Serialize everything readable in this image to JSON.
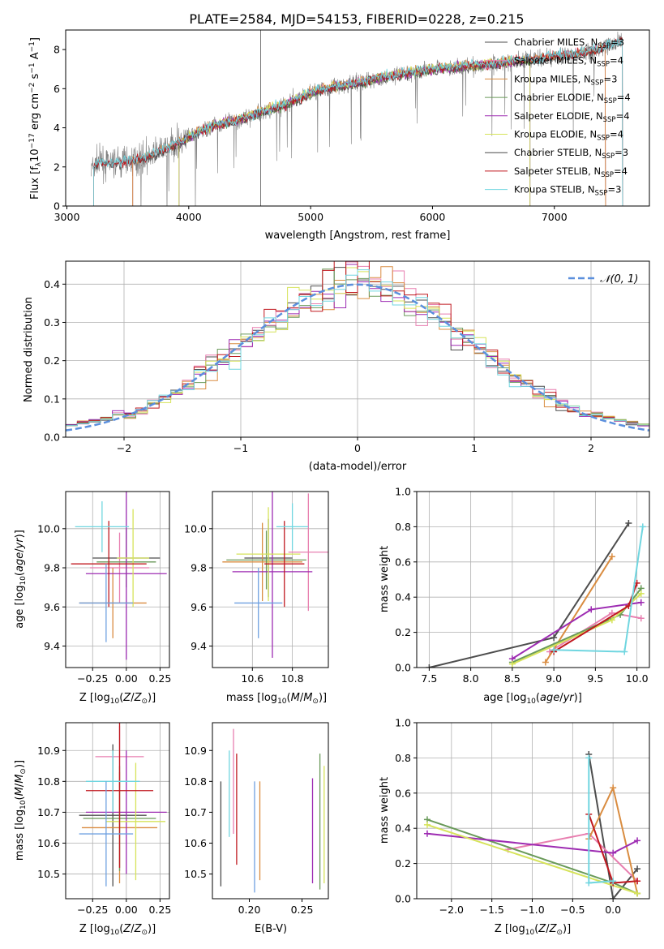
{
  "figure": {
    "title": "PLATE=2584, MJD=54153, FIBERID=0228, z=0.215"
  },
  "chart_data": [
    {
      "id": "spectrum",
      "type": "line",
      "xlabel": "wavelength [Angstrom, rest frame]",
      "ylabel": "Flux [f_λ 10^-17 erg cm^-2 s^-1 A^-1]",
      "xlim": [
        2990,
        7780
      ],
      "ylim": [
        0,
        9
      ],
      "xticks": [
        3000,
        4000,
        5000,
        6000,
        7000
      ],
      "yticks": [
        0,
        2,
        4,
        6,
        8
      ],
      "grid": false,
      "legend_position": "top-right",
      "vline_x": 4590,
      "data_trend": {
        "x": [
          3200,
          3260,
          3400,
          3600,
          3700,
          3800,
          3950,
          4050,
          4200,
          4400,
          4600,
          4800,
          5000,
          5200,
          5400,
          5600,
          5800,
          6000,
          6200,
          6400,
          6600,
          6800,
          7000,
          7200,
          7400,
          7560
        ],
        "y": [
          1.9,
          2.2,
          2.2,
          2.4,
          2.6,
          2.9,
          3.3,
          3.7,
          4.1,
          4.4,
          4.8,
          5.2,
          5.8,
          6.1,
          6.3,
          6.6,
          6.8,
          7.0,
          7.1,
          7.2,
          7.35,
          7.5,
          7.65,
          7.8,
          8.1,
          8.5
        ]
      },
      "series": [
        {
          "name": "Chabrier MILES, N_SSP=3",
          "color": "#4d4d4d",
          "x_start": 3540,
          "x_end": 7420
        },
        {
          "name": "Salpeter MILES, N_SSP=4",
          "color": "#e87fb0",
          "x_start": 3540,
          "x_end": 7420
        },
        {
          "name": "Kroupa MILES, N_SSP=3",
          "color": "#d98c40",
          "x_start": 3540,
          "x_end": 7420
        },
        {
          "name": "Chabrier ELODIE, N_SSP=4",
          "color": "#6a9a5a",
          "x_start": 3920,
          "x_end": 6800
        },
        {
          "name": "Salpeter ELODIE, N_SSP=4",
          "color": "#9d2bb2",
          "x_start": 3920,
          "x_end": 6800
        },
        {
          "name": "Kroupa ELODIE, N_SSP=4",
          "color": "#d6e35a",
          "x_start": 3920,
          "x_end": 6800
        },
        {
          "name": "Chabrier STELIB, N_SSP=3",
          "color": "#4a4a4a",
          "x_start": 3220,
          "x_end": 7560
        },
        {
          "name": "Salpeter STELIB, N_SSP=4",
          "color": "#c0181f",
          "x_start": 3220,
          "x_end": 7560
        },
        {
          "name": "Kroupa STELIB, N_SSP=3",
          "color": "#70d6e0",
          "x_start": 3220,
          "x_end": 7560
        }
      ]
    },
    {
      "id": "residuals",
      "type": "line",
      "xlabel": "(data-model)/error",
      "ylabel": "Normed distribution",
      "xlim": [
        -2.5,
        2.5
      ],
      "ylim": [
        0,
        0.46
      ],
      "xticks": [
        -2,
        -1,
        0,
        1,
        2
      ],
      "yticks": [
        0.0,
        0.1,
        0.2,
        0.3,
        0.4
      ],
      "grid": true,
      "legend_position": "top-right",
      "reference": {
        "name": "𝒩(0, 1)",
        "color": "#5b8fdd",
        "mean": 0,
        "sigma": 1
      },
      "bins": {
        "start": -2.5,
        "width": 0.1,
        "count": 50
      },
      "histogram_colors": [
        "#4d4d4d",
        "#e87fb0",
        "#d98c40",
        "#6a9a5a",
        "#9d2bb2",
        "#d6e35a",
        "#c0181f",
        "#70d6e0"
      ]
    },
    {
      "id": "age_vs_Z",
      "type": "scatter",
      "xlabel": "Z [log10(Z/Z⊙)]",
      "ylabel": "age [log10(age/yr)]",
      "xlim": [
        -0.45,
        0.32
      ],
      "ylim": [
        9.29,
        10.19
      ],
      "xticks": [
        -0.25,
        0.0,
        0.25
      ],
      "yticks": [
        9.4,
        9.6,
        9.8,
        10.0
      ],
      "grid": true,
      "points": [
        {
          "x": 0.0,
          "y": 9.85,
          "xerr": 0.25,
          "yerr": 0.15,
          "color": "#4d4d4d"
        },
        {
          "x": -0.05,
          "y": 9.8,
          "xerr": 0.22,
          "yerr": 0.18,
          "color": "#e87fb0"
        },
        {
          "x": -0.1,
          "y": 9.62,
          "xerr": 0.25,
          "yerr": 0.18,
          "color": "#d98c40"
        },
        {
          "x": 0.0,
          "y": 9.83,
          "xerr": 0.22,
          "yerr": 0.12,
          "color": "#6a9a5a"
        },
        {
          "x": 0.0,
          "y": 9.77,
          "xerr": 0.3,
          "yerr": 0.44,
          "color": "#9d2bb2"
        },
        {
          "x": 0.05,
          "y": 9.85,
          "xerr": 0.12,
          "yerr": 0.25,
          "color": "#d6e35a"
        },
        {
          "x": -0.13,
          "y": 9.82,
          "xerr": 0.28,
          "yerr": 0.22,
          "color": "#c0181f"
        },
        {
          "x": -0.18,
          "y": 10.01,
          "xerr": 0.2,
          "yerr": 0.13,
          "color": "#70d6e0"
        },
        {
          "x": -0.15,
          "y": 9.62,
          "xerr": 0.2,
          "yerr": 0.2,
          "color": "#6fa0e0"
        }
      ]
    },
    {
      "id": "age_vs_mass",
      "type": "scatter",
      "xlabel": "mass [log10(M/M⊙)]",
      "ylabel": "",
      "xlim": [
        10.4,
        10.98
      ],
      "ylim": [
        9.29,
        10.19
      ],
      "xticks": [
        10.6,
        10.8
      ],
      "yticks": [
        9.4,
        9.6,
        9.8,
        10.0
      ],
      "grid": true,
      "points": [
        {
          "x": 10.68,
          "y": 9.85,
          "xerr": 0.12,
          "yerr": 0.2,
          "color": "#4d4d4d"
        },
        {
          "x": 10.88,
          "y": 9.88,
          "xerr": 0.1,
          "yerr": 0.3,
          "color": "#e87fb0"
        },
        {
          "x": 10.65,
          "y": 9.83,
          "xerr": 0.2,
          "yerr": 0.2,
          "color": "#d98c40"
        },
        {
          "x": 10.67,
          "y": 9.84,
          "xerr": 0.2,
          "yerr": 0.15,
          "color": "#6a9a5a"
        },
        {
          "x": 10.7,
          "y": 9.78,
          "xerr": 0.2,
          "yerr": 0.44,
          "color": "#9d2bb2"
        },
        {
          "x": 10.68,
          "y": 9.87,
          "xerr": 0.16,
          "yerr": 0.24,
          "color": "#d6e35a"
        },
        {
          "x": 10.76,
          "y": 9.82,
          "xerr": 0.1,
          "yerr": 0.22,
          "color": "#c0181f"
        },
        {
          "x": 10.8,
          "y": 10.01,
          "xerr": 0.08,
          "yerr": 0.12,
          "color": "#70d6e0"
        },
        {
          "x": 10.63,
          "y": 9.62,
          "xerr": 0.12,
          "yerr": 0.18,
          "color": "#6fa0e0"
        }
      ]
    },
    {
      "id": "weight_vs_age",
      "type": "line",
      "xlabel": "age [log10(age/yr)]",
      "ylabel": "mass weight",
      "xlim": [
        7.35,
        10.15
      ],
      "ylim": [
        0,
        1.0
      ],
      "xticks": [
        7.5,
        8.0,
        8.5,
        9.0,
        9.5,
        10.0
      ],
      "yticks": [
        0.0,
        0.2,
        0.4,
        0.6,
        0.8,
        1.0
      ],
      "grid": true,
      "series": [
        {
          "color": "#4d4d4d",
          "x": [
            7.5,
            9.0,
            9.9
          ],
          "y": [
            0.0,
            0.17,
            0.82
          ]
        },
        {
          "color": "#e87fb0",
          "x": [
            8.95,
            9.7,
            10.05
          ],
          "y": [
            0.09,
            0.31,
            0.28
          ]
        },
        {
          "color": "#d98c40",
          "x": [
            8.9,
            9.7
          ],
          "y": [
            0.03,
            0.63
          ]
        },
        {
          "color": "#6a9a5a",
          "x": [
            8.5,
            9.8,
            10.05
          ],
          "y": [
            0.03,
            0.3,
            0.45
          ]
        },
        {
          "color": "#9d2bb2",
          "x": [
            8.5,
            9.45,
            10.05
          ],
          "y": [
            0.05,
            0.33,
            0.37
          ]
        },
        {
          "color": "#d6e35a",
          "x": [
            8.5,
            9.7,
            10.05
          ],
          "y": [
            0.02,
            0.27,
            0.42
          ]
        },
        {
          "color": "#c0181f",
          "x": [
            9.0,
            9.9,
            10.0
          ],
          "y": [
            0.09,
            0.35,
            0.48
          ]
        },
        {
          "color": "#70d6e0",
          "x": [
            9.0,
            9.85,
            10.07
          ],
          "y": [
            0.1,
            0.09,
            0.8
          ]
        }
      ]
    },
    {
      "id": "mass_vs_Z",
      "type": "scatter",
      "xlabel": "Z [log10(Z/Z⊙)]",
      "ylabel": "mass [log10(M/M⊙)]",
      "xlim": [
        -0.45,
        0.32
      ],
      "ylim": [
        10.42,
        10.99
      ],
      "xticks": [
        -0.25,
        0.0,
        0.25
      ],
      "yticks": [
        10.5,
        10.6,
        10.7,
        10.8,
        10.9
      ],
      "grid": true,
      "points": [
        {
          "x": -0.1,
          "y": 10.69,
          "xerr": 0.25,
          "yerr": 0.23,
          "color": "#4d4d4d"
        },
        {
          "x": -0.05,
          "y": 10.88,
          "xerr": 0.18,
          "yerr": 0.1,
          "color": "#e87fb0"
        },
        {
          "x": -0.05,
          "y": 10.65,
          "xerr": 0.28,
          "yerr": 0.18,
          "color": "#d98c40"
        },
        {
          "x": -0.05,
          "y": 10.68,
          "xerr": 0.27,
          "yerr": 0.17,
          "color": "#6a9a5a"
        },
        {
          "x": 0.0,
          "y": 10.7,
          "xerr": 0.3,
          "yerr": 0.2,
          "color": "#9d2bb2"
        },
        {
          "x": 0.07,
          "y": 10.67,
          "xerr": 0.22,
          "yerr": 0.19,
          "color": "#d6e35a"
        },
        {
          "x": -0.05,
          "y": 10.77,
          "xerr": 0.25,
          "yerr": 0.25,
          "color": "#c0181f"
        },
        {
          "x": -0.1,
          "y": 10.8,
          "xerr": 0.2,
          "yerr": 0.1,
          "color": "#70d6e0"
        },
        {
          "x": -0.15,
          "y": 10.63,
          "xerr": 0.2,
          "yerr": 0.17,
          "color": "#6fa0e0"
        }
      ]
    },
    {
      "id": "mass_vs_ebv",
      "type": "scatter",
      "xlabel": "E(B-V)",
      "ylabel": "",
      "xlim": [
        0.165,
        0.275
      ],
      "ylim": [
        10.42,
        10.99
      ],
      "xticks": [
        0.2,
        0.25
      ],
      "yticks": [
        10.5,
        10.6,
        10.7,
        10.8,
        10.9
      ],
      "grid": false,
      "points": [
        {
          "x": 0.173,
          "y": 10.63,
          "yerr": 0.17,
          "color": "#4d4d4d"
        },
        {
          "x": 0.185,
          "y": 10.8,
          "yerr": 0.17,
          "color": "#e87fb0"
        },
        {
          "x": 0.21,
          "y": 10.64,
          "yerr": 0.16,
          "color": "#d98c40"
        },
        {
          "x": 0.267,
          "y": 10.67,
          "yerr": 0.22,
          "color": "#6a9a5a"
        },
        {
          "x": 0.26,
          "y": 10.64,
          "yerr": 0.17,
          "color": "#9d2bb2"
        },
        {
          "x": 0.271,
          "y": 10.66,
          "yerr": 0.19,
          "color": "#d6e35a"
        },
        {
          "x": 0.188,
          "y": 10.71,
          "yerr": 0.18,
          "color": "#c0181f"
        },
        {
          "x": 0.181,
          "y": 10.76,
          "yerr": 0.14,
          "color": "#70d6e0"
        },
        {
          "x": 0.205,
          "y": 10.62,
          "yerr": 0.18,
          "color": "#6fa0e0"
        }
      ]
    },
    {
      "id": "weight_vs_Z",
      "type": "line",
      "xlabel": "Z [log10(Z/Z⊙)]",
      "ylabel": "mass weight",
      "xlim": [
        -2.43,
        0.45
      ],
      "ylim": [
        0,
        1.0
      ],
      "xticks": [
        -2.0,
        -1.5,
        -1.0,
        -0.5,
        0.0
      ],
      "yticks": [
        0.0,
        0.2,
        0.4,
        0.6,
        0.8,
        1.0
      ],
      "grid": true,
      "series": [
        {
          "color": "#4d4d4d",
          "x": [
            -0.3,
            0.0,
            0.3
          ],
          "y": [
            0.82,
            0.0,
            0.17
          ]
        },
        {
          "color": "#e87fb0",
          "x": [
            -1.3,
            -0.3,
            0.3
          ],
          "y": [
            0.28,
            0.37,
            0.1
          ]
        },
        {
          "color": "#d98c40",
          "x": [
            -0.3,
            0.0,
            0.3
          ],
          "y": [
            0.34,
            0.63,
            0.03
          ]
        },
        {
          "color": "#6a9a5a",
          "x": [
            -2.3,
            0.0,
            0.3
          ],
          "y": [
            0.45,
            0.09,
            0.03
          ]
        },
        {
          "color": "#9d2bb2",
          "x": [
            -2.3,
            0.0,
            0.3
          ],
          "y": [
            0.37,
            0.26,
            0.33
          ]
        },
        {
          "color": "#d6e35a",
          "x": [
            -2.3,
            0.3
          ],
          "y": [
            0.42,
            0.03
          ]
        },
        {
          "color": "#c0181f",
          "x": [
            -0.3,
            0.0,
            0.3
          ],
          "y": [
            0.48,
            0.09,
            0.1
          ]
        },
        {
          "color": "#70d6e0",
          "x": [
            -0.3,
            -0.3,
            0.0
          ],
          "y": [
            0.8,
            0.09,
            0.1
          ]
        }
      ]
    }
  ]
}
